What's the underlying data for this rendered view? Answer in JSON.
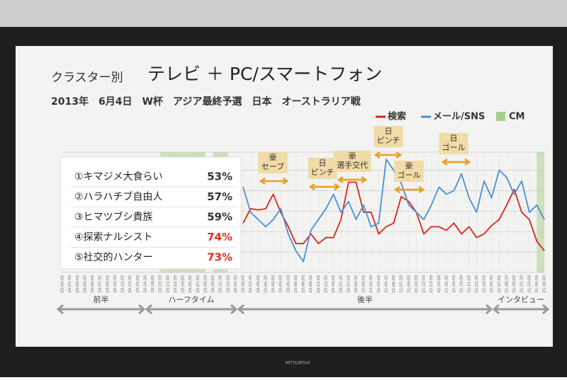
{
  "chart_data": {
    "type": "line",
    "heading_small": "クラスター別",
    "title": "テレビ ＋ PC/スマートフォン",
    "subtitle": "2013年　6月4日　W杯　アジア最終予選　日本　オーストラリア戦",
    "categories": [
      "20:00:00",
      "20:01:30",
      "20:03:00",
      "20:04:30",
      "20:06:00",
      "20:07:30",
      "20:09:00",
      "20:10:30",
      "20:12:00",
      "20:13:30",
      "20:15:00",
      "20:16:30",
      "20:18:00",
      "20:19:30",
      "20:21:00",
      "20:22:30",
      "20:24:00",
      "20:25:30",
      "20:27:00",
      "20:28:30",
      "20:30:00",
      "20:31:30",
      "20:33:00",
      "20:34:30",
      "20:36:00",
      "20:37:30",
      "20:39:00",
      "20:40:30",
      "20:42:00",
      "20:43:30",
      "20:45:00",
      "20:46:30",
      "20:48:00",
      "20:49:30",
      "20:51:00",
      "20:52:30",
      "20:54:00",
      "20:55:30",
      "20:57:00",
      "20:58:30",
      "21:00:00",
      "21:01:30",
      "21:03:00",
      "21:04:30",
      "21:06:00",
      "21:07:30",
      "21:09:00",
      "21:10:30",
      "21:12:00",
      "21:13:30",
      "21:15:00",
      "21:16:30",
      "21:18:00",
      "21:19:30",
      "21:21:00",
      "21:22:30",
      "21:24:00",
      "21:25:30",
      "21:27:00",
      "21:28:30",
      "21:30:00",
      "21:31:30",
      "21:33:00",
      "21:34:30",
      "21:36:00"
    ],
    "series": [
      {
        "name": "検索",
        "color": "#d9261c",
        "values": [
          null,
          null,
          null,
          null,
          null,
          null,
          null,
          null,
          null,
          null,
          null,
          null,
          null,
          null,
          null,
          null,
          null,
          null,
          null,
          null,
          null,
          null,
          null,
          null,
          41,
          53,
          52,
          53,
          65,
          50,
          38,
          24,
          24,
          32,
          24,
          29,
          29,
          44,
          75,
          75,
          50,
          50,
          32,
          38,
          41,
          63,
          59,
          50,
          32,
          38,
          38,
          35,
          41,
          32,
          38,
          29,
          32,
          39,
          44,
          56,
          69,
          50,
          44,
          26,
          18
        ]
      },
      {
        "name": "メール/SNS",
        "color": "#4a8fd4",
        "values": [
          null,
          null,
          null,
          null,
          null,
          null,
          null,
          null,
          null,
          null,
          null,
          null,
          null,
          null,
          null,
          null,
          null,
          null,
          null,
          null,
          null,
          null,
          null,
          null,
          71,
          50,
          44,
          38,
          44,
          53,
          32,
          18,
          9,
          35,
          44,
          53,
          65,
          50,
          59,
          44,
          56,
          38,
          41,
          94,
          85,
          74,
          56,
          50,
          44,
          56,
          71,
          65,
          68,
          82,
          62,
          50,
          76,
          62,
          85,
          79,
          65,
          76,
          50,
          56,
          44
        ]
      }
    ],
    "cm_name": "CM",
    "cm_color": "#a9cf8e",
    "cm": [
      [
        "20:19:30",
        "20:28:30"
      ],
      [
        "20:30:00",
        "20:33:00"
      ],
      [
        "21:34:30",
        "21:36:00"
      ]
    ],
    "ylim": [
      0,
      100
    ],
    "yticks": [
      0,
      17,
      34,
      51,
      68,
      85,
      100
    ],
    "grid": true,
    "annotations": [
      [
        "豪",
        "セーブ"
      ],
      [
        "日",
        "ピンチ"
      ],
      [
        "豪",
        "選手交代"
      ],
      [
        "日",
        "ピンチ"
      ],
      [
        "豪",
        "ゴール"
      ],
      [
        "日",
        "ゴール"
      ]
    ],
    "phases": [
      "前半",
      "ハーフタイム",
      "後半",
      "インタビュー"
    ]
  },
  "cluster_table": {
    "rows": [
      [
        "①キマジメ大食らい",
        "53%"
      ],
      [
        "②ハラハチブ自由人",
        "57%"
      ],
      [
        "③ヒマツブシ貴族",
        "59%"
      ],
      [
        "④探索ナルシスト",
        "74%"
      ],
      [
        "⑤社交的ハンター",
        "73%"
      ]
    ]
  },
  "bezel_brand": "MITSUBISHI"
}
